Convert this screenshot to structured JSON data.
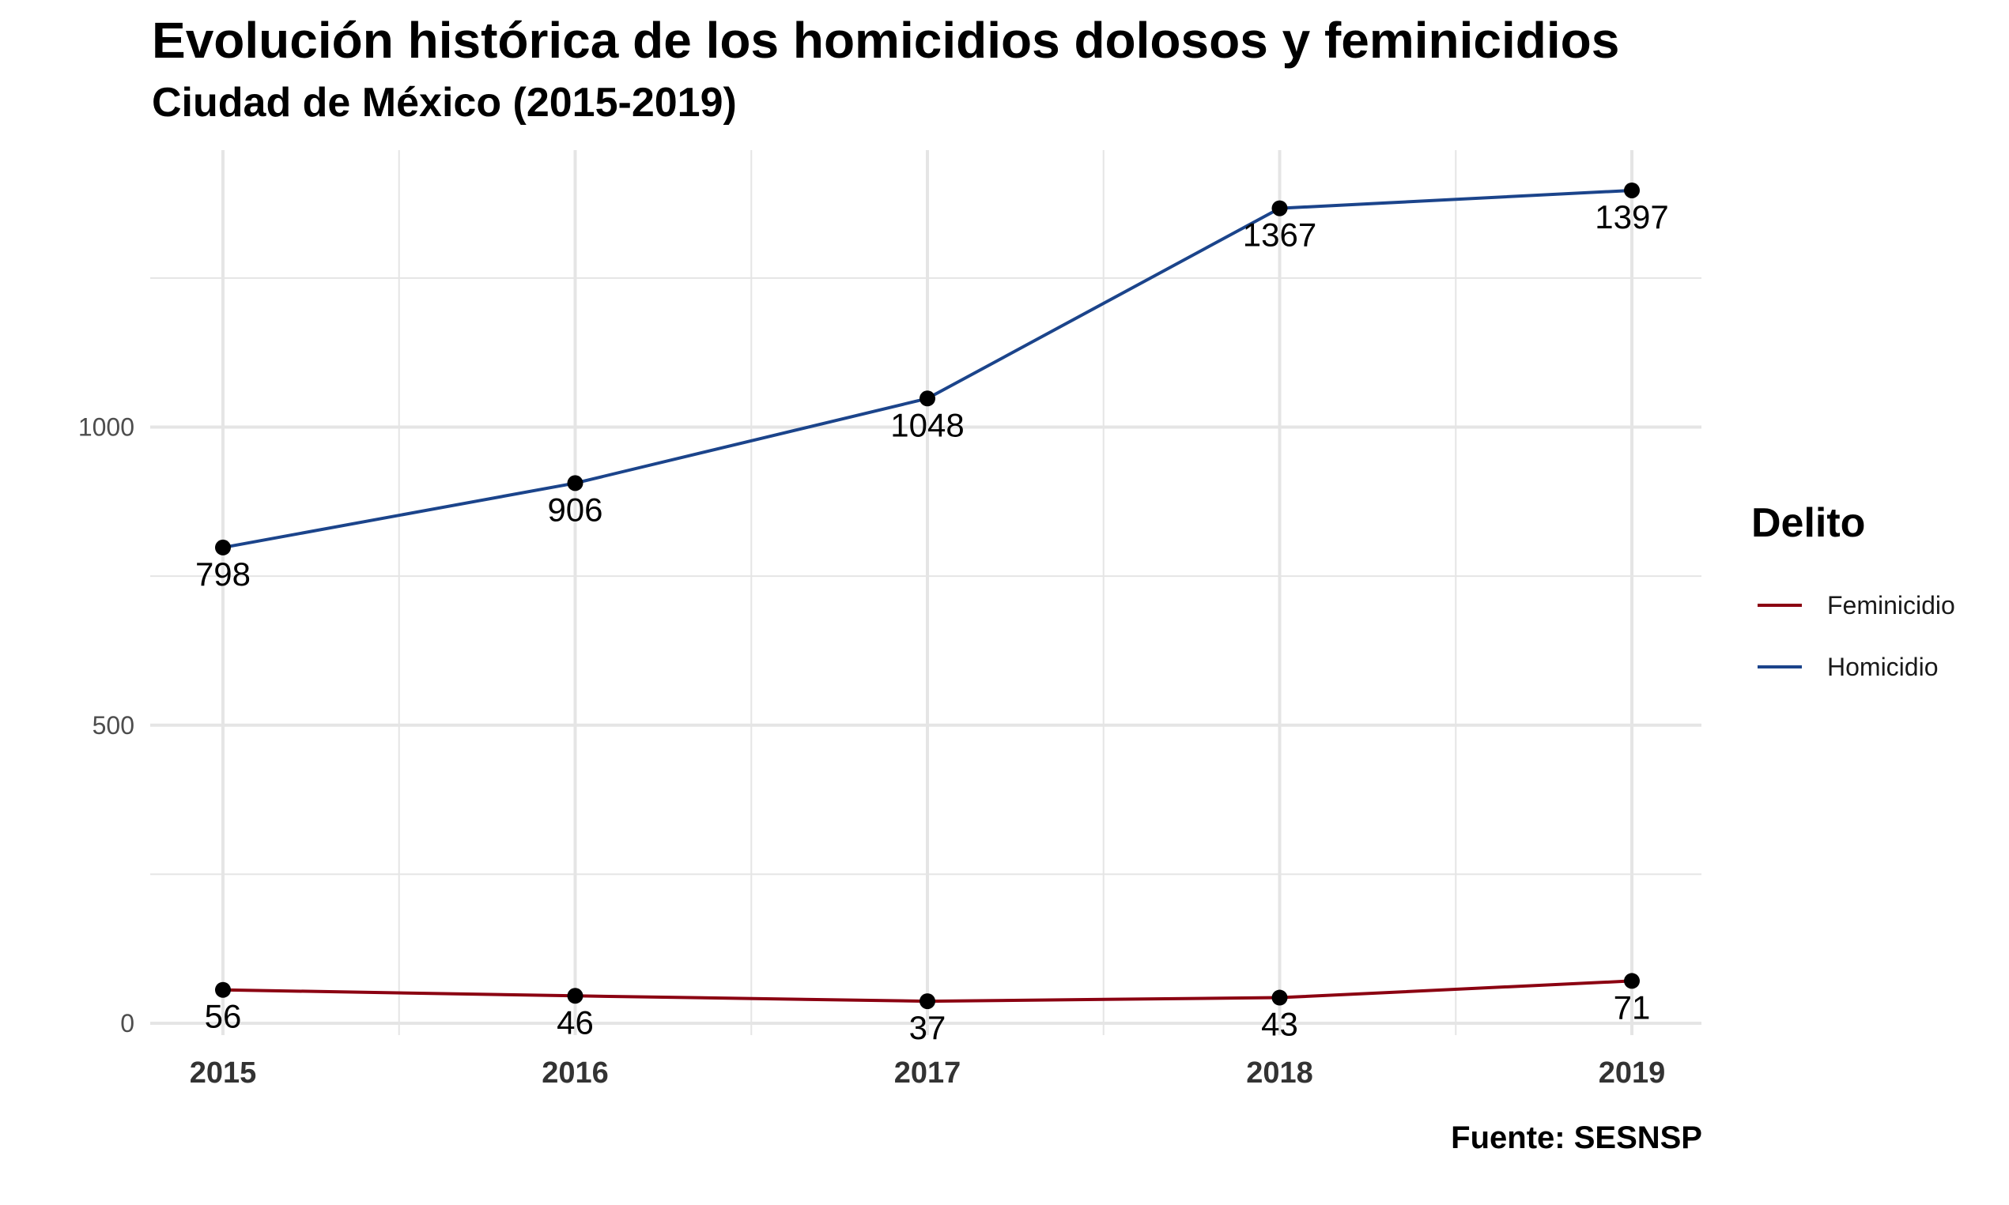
{
  "title": "Evolución histórica de los homicidios dolosos y feminicidios",
  "subtitle": "Ciudad de México (2015-2019)",
  "caption": "Fuente: SESNSP",
  "colors": {
    "Feminicidio": "#8b0011",
    "Homicidio": "#1b448b",
    "point": "#000000",
    "grid": "#e5e5e5"
  },
  "chart_data": {
    "type": "line",
    "title": "Evolución histórica de los homicidios dolosos y feminicidios",
    "subtitle": "Ciudad de México (2015-2019)",
    "xlabel": "",
    "ylabel": "",
    "x": [
      "2015",
      "2016",
      "2017",
      "2018",
      "2019"
    ],
    "yticks": [
      "0",
      "500",
      "1000"
    ],
    "ylim": [
      0,
      1397
    ],
    "grid": true,
    "legend": {
      "title": "Delito",
      "position": "right",
      "entries": [
        "Feminicidio",
        "Homicidio"
      ]
    },
    "series": [
      {
        "name": "Feminicidio",
        "values": [
          56,
          46,
          37,
          43,
          71
        ],
        "labels": [
          "56",
          "46",
          "37",
          "43",
          "71"
        ]
      },
      {
        "name": "Homicidio",
        "values": [
          798,
          906,
          1048,
          1367,
          1397
        ],
        "labels": [
          "798",
          "906",
          "1048",
          "1367",
          "1397"
        ]
      }
    ]
  }
}
